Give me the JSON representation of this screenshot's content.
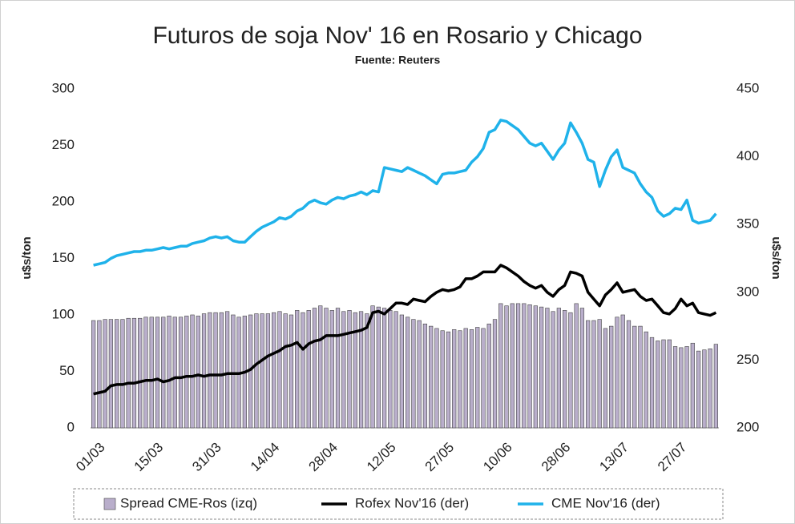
{
  "chart_data": {
    "type": "bar_line",
    "title": "Futuros de soja Nov' 16 en Rosario y Chicago",
    "subtitle": "Fuente: Reuters",
    "ylabel": "u$s/ton",
    "y2label": "u$s/ton",
    "categories": [
      "01/03",
      null,
      null,
      null,
      null,
      null,
      null,
      null,
      null,
      null,
      "15/03",
      null,
      null,
      null,
      null,
      null,
      null,
      null,
      null,
      null,
      "31/03",
      null,
      null,
      null,
      null,
      null,
      null,
      null,
      null,
      null,
      "14/04",
      null,
      null,
      null,
      null,
      null,
      null,
      null,
      null,
      null,
      "28/04",
      null,
      null,
      null,
      null,
      null,
      null,
      null,
      null,
      null,
      "12/05",
      null,
      null,
      null,
      null,
      null,
      null,
      null,
      null,
      null,
      "27/05",
      null,
      null,
      null,
      null,
      null,
      null,
      null,
      null,
      null,
      "10/06",
      null,
      null,
      null,
      null,
      null,
      null,
      null,
      null,
      null,
      "28/06",
      null,
      null,
      null,
      null,
      null,
      null,
      null,
      null,
      null,
      "13/07",
      null,
      null,
      null,
      null,
      null,
      null,
      null,
      null,
      null,
      "27/07",
      null,
      null,
      null,
      null,
      null,
      null,
      null
    ],
    "ylim": [
      0,
      300
    ],
    "yticks": [
      0,
      50,
      100,
      150,
      200,
      250,
      300
    ],
    "y2lim": [
      200,
      450
    ],
    "y2ticks": [
      200,
      250,
      300,
      350,
      400,
      450
    ],
    "series": [
      {
        "name": "Spread CME-Ros (izq)",
        "type": "bar",
        "color": "#b9aecb",
        "values": [
          95,
          95,
          96,
          96,
          96,
          96,
          97,
          97,
          97,
          98,
          98,
          98,
          98,
          99,
          98,
          98,
          99,
          100,
          99,
          101,
          102,
          102,
          102,
          103,
          100,
          98,
          99,
          100,
          101,
          101,
          101,
          102,
          103,
          101,
          100,
          104,
          102,
          104,
          106,
          108,
          106,
          104,
          106,
          103,
          104,
          102,
          103,
          101,
          108,
          107,
          106,
          104,
          103,
          100,
          98,
          96,
          95,
          92,
          90,
          88,
          86,
          85,
          87,
          86,
          88,
          87,
          89,
          88,
          92,
          96,
          110,
          108,
          110,
          110,
          110,
          109,
          108,
          107,
          106,
          103,
          106,
          104,
          102,
          110,
          106,
          95,
          95,
          96,
          88,
          90,
          98,
          100,
          95,
          90,
          90,
          85,
          80,
          77,
          78,
          78,
          72,
          71,
          72,
          75,
          68,
          69,
          70,
          74
        ]
      },
      {
        "name": "Rofex Nov'16 (der)",
        "type": "line",
        "axis": "y2",
        "color": "#000000",
        "values": [
          225,
          226,
          227,
          231,
          232,
          232,
          233,
          233,
          234,
          235,
          235,
          236,
          234,
          235,
          237,
          237,
          238,
          238,
          239,
          238,
          239,
          239,
          239,
          240,
          240,
          240,
          241,
          243,
          247,
          250,
          253,
          255,
          257,
          260,
          261,
          263,
          258,
          262,
          264,
          265,
          268,
          268,
          268,
          269,
          270,
          271,
          272,
          274,
          285,
          286,
          284,
          288,
          292,
          292,
          291,
          295,
          294,
          293,
          297,
          300,
          302,
          301,
          302,
          304,
          310,
          310,
          312,
          315,
          315,
          315,
          320,
          318,
          315,
          312,
          308,
          305,
          303,
          305,
          300,
          297,
          302,
          305,
          315,
          314,
          312,
          300,
          295,
          290,
          298,
          302,
          307,
          300,
          301,
          302,
          297,
          294,
          295,
          290,
          285,
          284,
          288,
          295,
          290,
          292,
          285,
          284,
          283,
          285
        ]
      },
      {
        "name": "CME Nov'16 (der)",
        "type": "line",
        "axis": "y2",
        "color": "#1fb2ea",
        "values": [
          320,
          321,
          322,
          325,
          327,
          328,
          329,
          330,
          330,
          331,
          331,
          332,
          333,
          332,
          333,
          334,
          334,
          336,
          337,
          338,
          340,
          341,
          340,
          341,
          338,
          337,
          337,
          341,
          345,
          348,
          350,
          352,
          355,
          354,
          356,
          360,
          362,
          366,
          368,
          366,
          365,
          368,
          370,
          369,
          371,
          372,
          374,
          372,
          375,
          374,
          392,
          391,
          390,
          389,
          392,
          390,
          388,
          386,
          383,
          380,
          387,
          388,
          388,
          389,
          390,
          396,
          400,
          406,
          418,
          420,
          427,
          426,
          423,
          420,
          415,
          410,
          408,
          410,
          404,
          398,
          405,
          410,
          425,
          418,
          410,
          398,
          396,
          378,
          390,
          400,
          405,
          392,
          390,
          388,
          380,
          374,
          370,
          360,
          356,
          358,
          362,
          361,
          368,
          353,
          351,
          352,
          353,
          358
        ]
      }
    ]
  }
}
